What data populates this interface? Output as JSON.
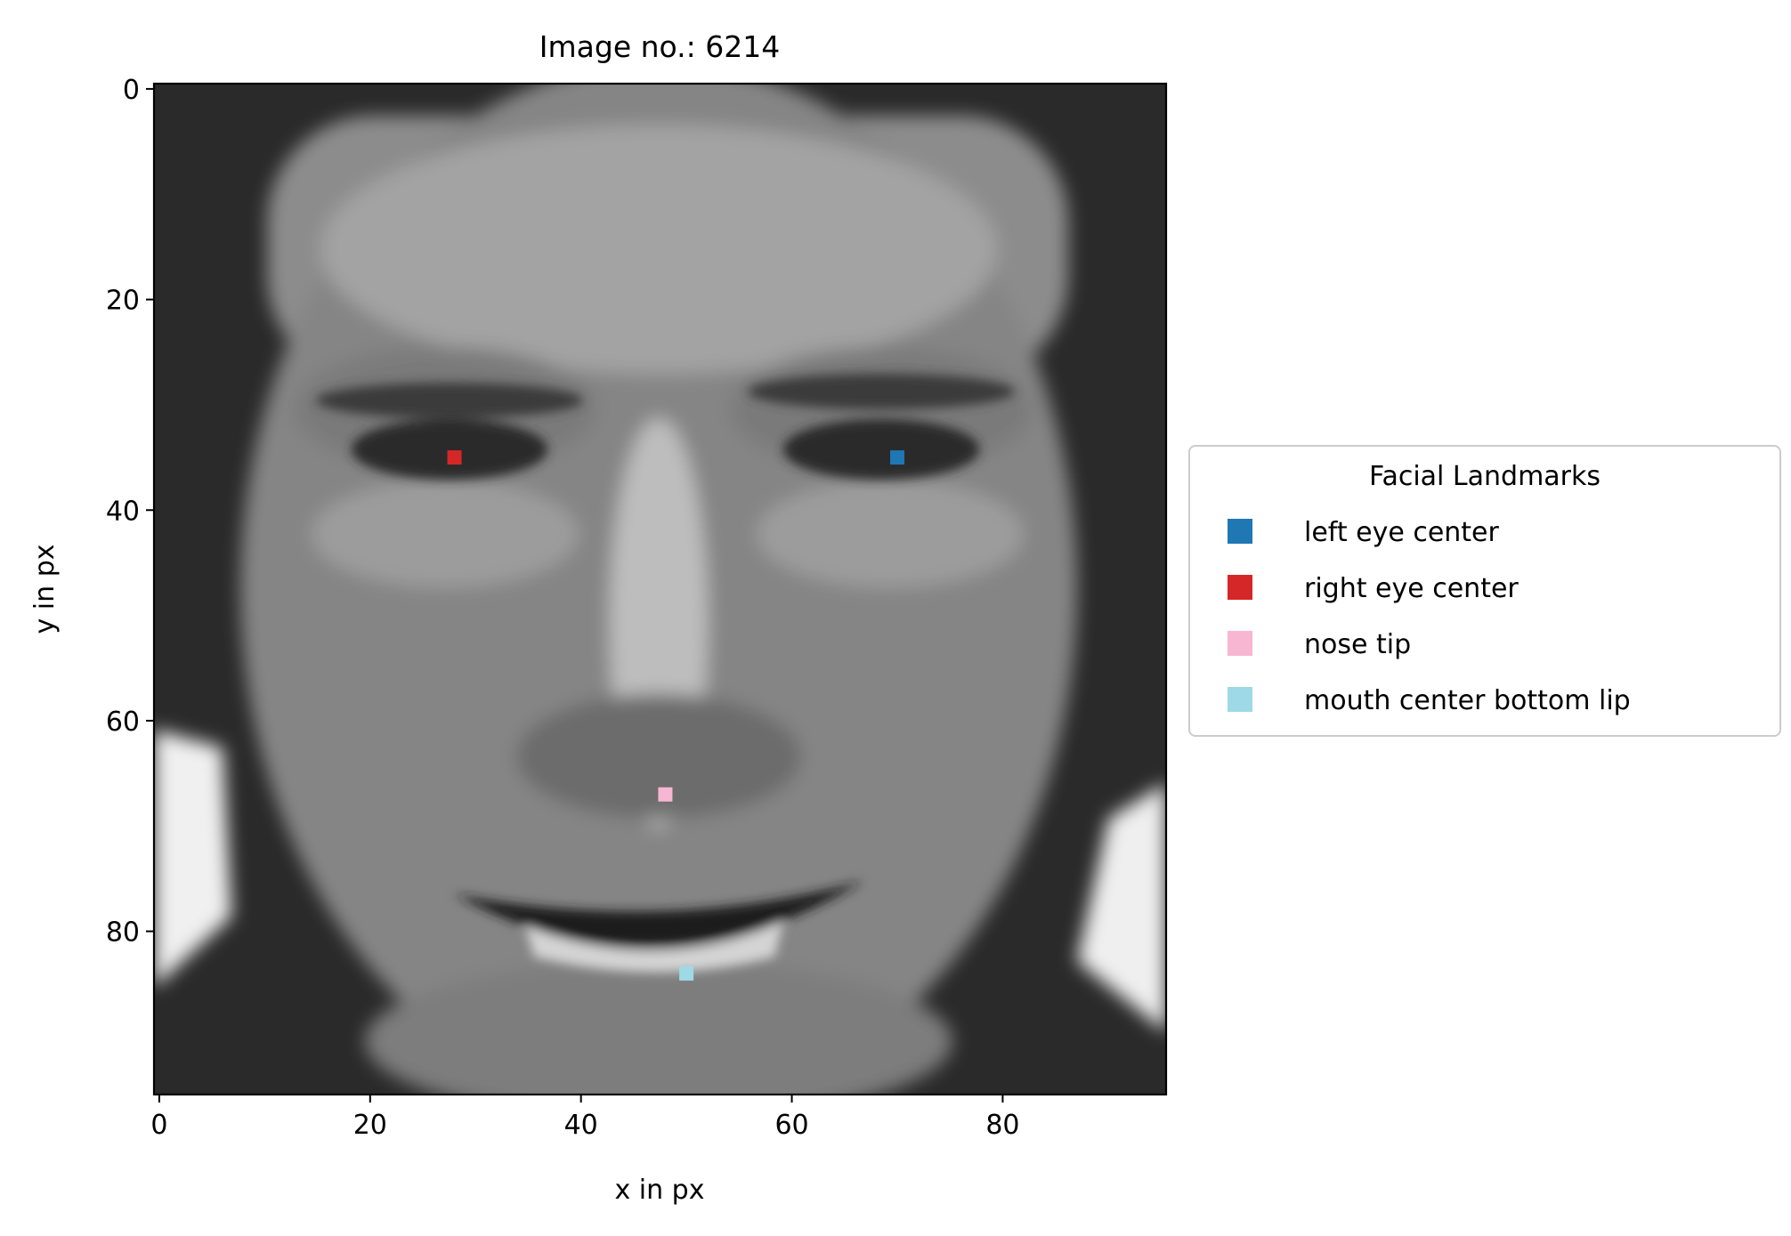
{
  "chart_data": {
    "type": "scatter",
    "title": "Image no.: 6214",
    "xlabel": "x in px",
    "ylabel": "y in px",
    "xlim": [
      -0.5,
      95.5
    ],
    "ylim": [
      95.5,
      -0.5
    ],
    "y_axis_inverted": true,
    "background": "grayscale photograph of a smiling face (96x96 pixels)",
    "x_ticks": [
      0,
      20,
      40,
      60,
      80
    ],
    "y_ticks": [
      0,
      20,
      40,
      60,
      80
    ],
    "x_tick_labels": [
      "0",
      "20",
      "40",
      "60",
      "80"
    ],
    "y_tick_labels": [
      "0",
      "20",
      "40",
      "60",
      "80"
    ],
    "legend": {
      "title": "Facial Landmarks",
      "placement": "center-right outside plot"
    },
    "series": [
      {
        "name": "left eye center",
        "color": "#1f77b4",
        "marker": "square",
        "x": 70,
        "y": 35
      },
      {
        "name": "right eye center",
        "color": "#d62728",
        "marker": "square",
        "x": 28,
        "y": 35
      },
      {
        "name": "nose tip",
        "color": "#f7b6d2",
        "marker": "square",
        "x": 48,
        "y": 67
      },
      {
        "name": "mouth center bottom lip",
        "color": "#9edae5",
        "marker": "square",
        "x": 50,
        "y": 84
      }
    ]
  }
}
